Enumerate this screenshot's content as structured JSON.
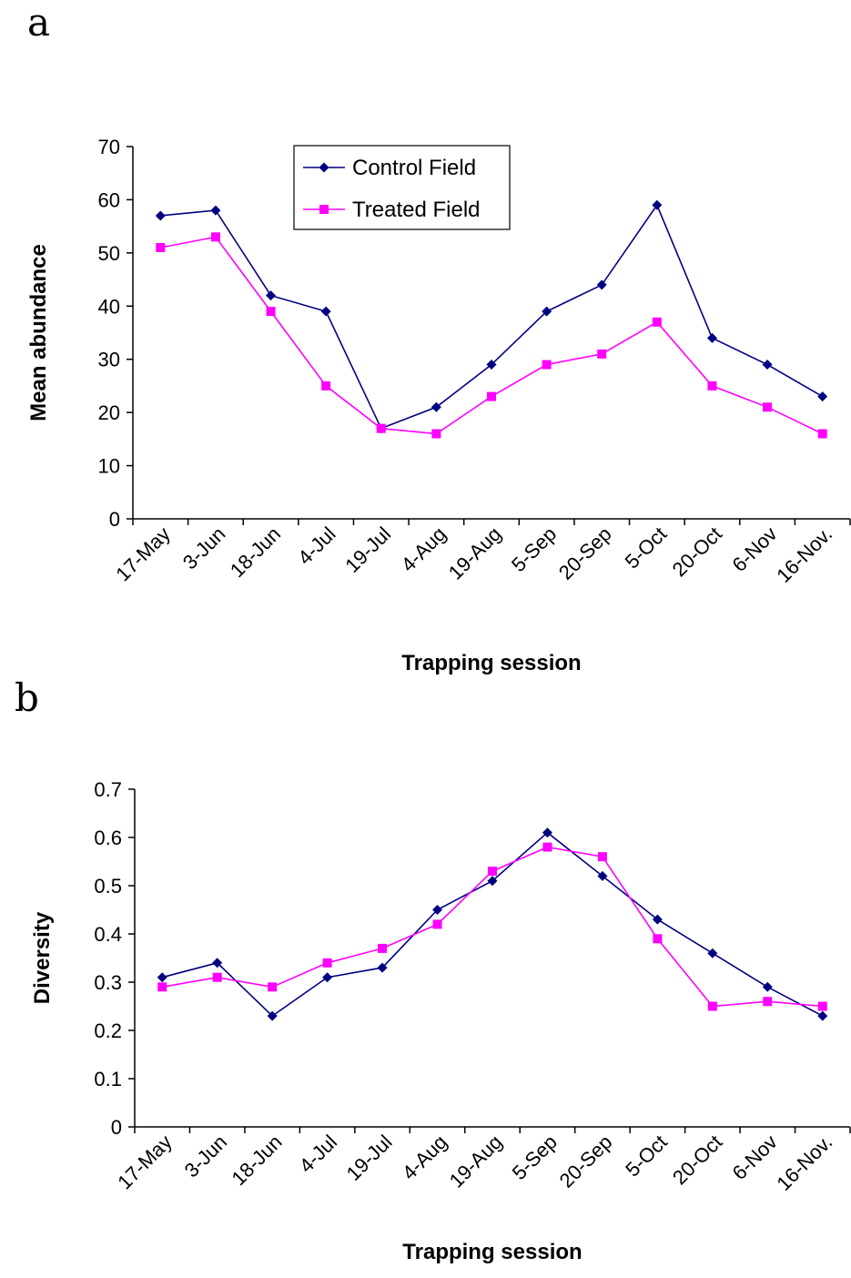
{
  "figure": {
    "panel_a_label": "a",
    "panel_b_label": "b"
  },
  "colors": {
    "control": "#000080",
    "treated": "#FF00FF",
    "axis": "#000000"
  },
  "chart_data": [
    {
      "type": "line",
      "panel": "a",
      "title": "",
      "xlabel": "Trapping session",
      "ylabel": "Mean abundance",
      "categories": [
        "17-May",
        "3-Jun",
        "18-Jun",
        "4-Jul",
        "19-Jul",
        "4-Aug",
        "19-Aug",
        "5-Sep",
        "20-Sep",
        "5-Oct",
        "20-Oct",
        "6-Nov",
        "16-Nov."
      ],
      "ylim": [
        0,
        70
      ],
      "yticks": [
        "0",
        "10",
        "20",
        "30",
        "40",
        "50",
        "60",
        "70"
      ],
      "yticks_values": [
        0,
        10,
        20,
        30,
        40,
        50,
        60,
        70
      ],
      "grid": false,
      "legend": "top-center",
      "series": [
        {
          "name": "Control Field",
          "marker": "diamond",
          "color": "#000080",
          "values": [
            57,
            58,
            42,
            39,
            17,
            21,
            29,
            39,
            44,
            59,
            34,
            29,
            23
          ]
        },
        {
          "name": "Treated Field",
          "marker": "square",
          "color": "#FF00FF",
          "values": [
            51,
            53,
            39,
            25,
            17,
            16,
            23,
            29,
            31,
            37,
            25,
            21,
            16
          ]
        }
      ]
    },
    {
      "type": "line",
      "panel": "b",
      "title": "",
      "xlabel": "Trapping session",
      "ylabel": "Diversity",
      "categories": [
        "17-May",
        "3-Jun",
        "18-Jun",
        "4-Jul",
        "19-Jul",
        "4-Aug",
        "19-Aug",
        "5-Sep",
        "20-Sep",
        "5-Oct",
        "20-Oct",
        "6-Nov",
        "16-Nov."
      ],
      "ylim": [
        0,
        0.7
      ],
      "yticks": [
        "0",
        "0.1",
        "0.2",
        "0.3",
        "0.4",
        "0.5",
        "0.6",
        "0.7"
      ],
      "yticks_values": [
        0,
        0.1,
        0.2,
        0.3,
        0.4,
        0.5,
        0.6,
        0.7
      ],
      "grid": false,
      "legend": "none",
      "series": [
        {
          "name": "",
          "marker": "diamond",
          "color": "#000080",
          "values": [
            0.31,
            0.34,
            0.23,
            0.31,
            0.33,
            0.45,
            0.51,
            0.61,
            0.52,
            0.43,
            0.36,
            0.29,
            0.23
          ]
        },
        {
          "name": "",
          "marker": "square",
          "color": "#FF00FF",
          "values": [
            0.29,
            0.31,
            0.29,
            0.34,
            0.37,
            0.42,
            0.53,
            0.58,
            0.56,
            0.39,
            0.25,
            0.26,
            0.25
          ]
        }
      ]
    }
  ]
}
